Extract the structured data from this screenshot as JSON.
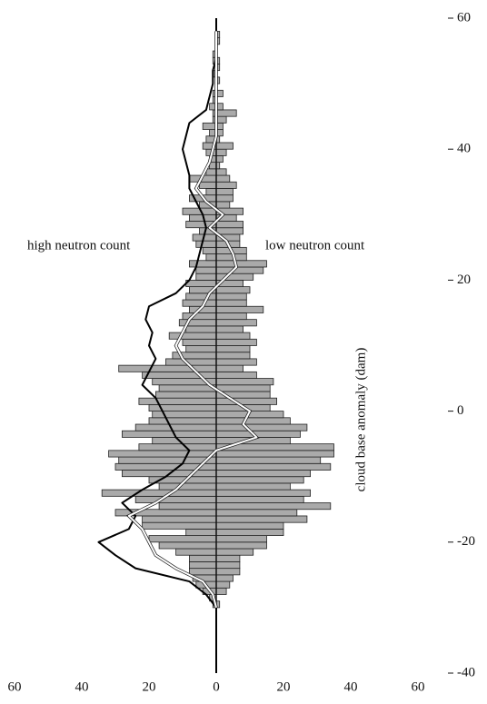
{
  "chart_data": {
    "type": "butterfly",
    "annotations": [
      "high neutron count",
      "low neutron count"
    ],
    "ylabel": "cloud base anomaly (dam)",
    "xlim": [
      -60,
      60
    ],
    "xticks": [
      {
        "value": -60,
        "label": "60"
      },
      {
        "value": -40,
        "label": "40"
      },
      {
        "value": -20,
        "label": "20"
      },
      0,
      20,
      40,
      60
    ],
    "ylim": [
      -40,
      60
    ],
    "yticks": [
      -40,
      -20,
      0,
      20,
      40,
      60
    ],
    "bar_color": "#aaaaaa",
    "bins": [
      -30,
      -29,
      -28,
      -27,
      -26,
      -25,
      -24,
      -23,
      -22,
      -21,
      -20,
      -19,
      -18,
      -17,
      -16,
      -15,
      -14,
      -13,
      -12,
      -11,
      -10,
      -9,
      -8,
      -7,
      -6,
      -5,
      -4,
      -3,
      -2,
      -1,
      0,
      1,
      2,
      3,
      4,
      5,
      6,
      7,
      8,
      9,
      10,
      11,
      12,
      13,
      14,
      15,
      16,
      17,
      18,
      19,
      20,
      21,
      22,
      23,
      24,
      25,
      26,
      27,
      28,
      29,
      30,
      31,
      32,
      33,
      34,
      35,
      36,
      37,
      38,
      39,
      40,
      41,
      42,
      43,
      44,
      45,
      46,
      47,
      48,
      49,
      50,
      51,
      52,
      53,
      54,
      55,
      56,
      57,
      58
    ],
    "left": [
      1,
      2,
      4,
      6,
      7,
      8,
      8,
      8,
      12,
      17,
      20,
      9,
      22,
      22,
      30,
      17,
      24,
      34,
      17,
      20,
      28,
      30,
      29,
      32,
      23,
      19,
      28,
      24,
      20,
      19,
      20,
      23,
      18,
      17,
      19,
      22,
      29,
      15,
      13,
      9,
      10,
      14,
      9,
      11,
      10,
      8,
      10,
      9,
      8,
      9,
      6,
      6,
      8,
      3,
      4,
      6,
      7,
      5,
      9,
      8,
      10,
      5,
      8,
      3,
      5,
      8,
      3,
      2,
      2,
      3,
      4,
      3,
      2,
      4,
      1,
      1,
      2,
      1,
      1,
      0,
      0,
      1,
      0,
      1,
      1,
      0,
      0,
      0
    ],
    "right": [
      1,
      0,
      3,
      4,
      5,
      7,
      7,
      7,
      11,
      15,
      15,
      20,
      20,
      27,
      24,
      34,
      26,
      28,
      22,
      26,
      28,
      34,
      31,
      35,
      35,
      22,
      25,
      27,
      22,
      20,
      16,
      18,
      16,
      16,
      17,
      12,
      8,
      12,
      10,
      10,
      12,
      10,
      8,
      12,
      9,
      14,
      9,
      9,
      10,
      8,
      11,
      14,
      15,
      9,
      9,
      7,
      7,
      8,
      8,
      6,
      8,
      4,
      5,
      5,
      6,
      4,
      3,
      1,
      2,
      3,
      5,
      1,
      2,
      2,
      3,
      6,
      2,
      0,
      2,
      0,
      1,
      0,
      1,
      1,
      0,
      0,
      1,
      1
    ],
    "lines": [
      {
        "color": "#000000",
        "y": [
          -40,
          -38,
          -36,
          -34,
          -32,
          -30,
          -28,
          -26,
          -24,
          -22,
          -20,
          -18,
          -16,
          -14,
          -12,
          -10,
          -8,
          -6,
          -4,
          -2,
          0,
          2,
          4,
          6,
          8,
          10,
          12,
          14,
          16,
          18,
          20,
          22,
          24,
          26,
          28,
          30,
          32,
          34,
          36,
          38,
          40,
          42,
          44,
          46,
          48,
          50,
          52,
          54,
          56,
          58,
          60
        ],
        "values": [
          0,
          0,
          0,
          0,
          0,
          0,
          -3,
          -8,
          -24,
          -30,
          -35,
          -26,
          -24,
          -28,
          -22,
          -15,
          -10,
          -8,
          -12,
          -14,
          -16,
          -18,
          -22,
          -20,
          -18,
          -20,
          -19,
          -21,
          -20,
          -12,
          -8,
          -6,
          -5,
          -4,
          -3,
          -4,
          -6,
          -8,
          -8,
          -9,
          -10,
          -9,
          -8,
          -3,
          -2,
          -1,
          -1,
          0,
          0,
          0,
          0
        ]
      },
      {
        "color": "#ffffff",
        "y": [
          -30,
          -28,
          -26,
          -24,
          -22,
          -20,
          -18,
          -16,
          -14,
          -12,
          -10,
          -8,
          -6,
          -4,
          -2,
          0,
          2,
          4,
          6,
          8,
          10,
          12,
          14,
          16,
          18,
          20,
          22,
          24,
          26,
          28,
          30,
          32,
          34,
          36,
          38,
          40,
          42,
          44,
          46,
          48,
          50,
          52,
          54,
          56,
          58
        ],
        "values": [
          0,
          -1,
          -4,
          -12,
          -18,
          -20,
          -22,
          -26,
          -18,
          -12,
          -8,
          -4,
          0,
          12,
          8,
          10,
          4,
          -2,
          -6,
          -10,
          -12,
          -10,
          -8,
          -4,
          -2,
          2,
          6,
          5,
          3,
          -2,
          2,
          -3,
          -6,
          -4,
          -2,
          -1,
          0,
          0,
          0,
          0,
          0,
          0,
          0,
          0,
          0
        ]
      }
    ]
  }
}
